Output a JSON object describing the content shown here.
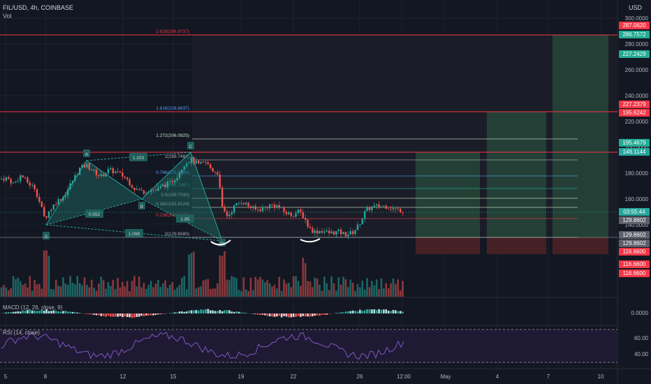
{
  "header": {
    "symbol": "FIL/USD, 4h, COINBASE",
    "vol_label": "Vol",
    "currency": "USD"
  },
  "indicators": {
    "macd_label": "MACD (12, 26, close, 9)",
    "rsi_label": "RSI (14, close)",
    "macd_axis": "0.0000",
    "rsi_axis": [
      "60.00",
      "40.00"
    ]
  },
  "price_axis": {
    "ticks": [
      "300.0000",
      "280.0000",
      "260.0000",
      "240.0000",
      "220.0000",
      "200.0000",
      "180.0000",
      "160.0000",
      "140.0000"
    ],
    "tags": [
      {
        "value": "287.0620",
        "color": "#f23645"
      },
      {
        "value": "286.7572",
        "color": "#22ab94"
      },
      {
        "value": "227.2429",
        "color": "#22ab94"
      },
      {
        "value": "227.2379",
        "color": "#f23645"
      },
      {
        "value": "195.6242",
        "color": "#f23645"
      },
      {
        "value": "195.4679",
        "color": "#22ab94"
      },
      {
        "value": "149.1144",
        "color": "#26a69a"
      },
      {
        "value": "03:55:44",
        "color": "#26a69a"
      },
      {
        "value": "129.8602",
        "color": "#5d606b"
      },
      {
        "value": "129.8602",
        "color": "#5d606b"
      },
      {
        "value": "129.8602",
        "color": "#5d606b"
      },
      {
        "value": "116.6600",
        "color": "#f23645"
      },
      {
        "value": "116.6600",
        "color": "#f23645"
      },
      {
        "value": "116.6600",
        "color": "#f23645"
      }
    ]
  },
  "time_axis": [
    "5",
    "8",
    "12",
    "15",
    "19",
    "22",
    "26",
    "12:00",
    "May",
    "4",
    "7",
    "10"
  ],
  "fib_levels": [
    {
      "label": "2.618(286.9737)",
      "color": "#f23645"
    },
    {
      "label": "1.618(226.8837)",
      "color": "#5b9cf6"
    },
    {
      "label": "1.272(206.0925)",
      "color": "#c8e6c9"
    },
    {
      "label": "1(189.7481)",
      "color": "#b2b5be"
    },
    {
      "label": "0.786(176.8888)",
      "color": "#5b9cf6"
    },
    {
      "label": "0.618(166.7867)",
      "color": "#26a69a"
    },
    {
      "label": "0.5(159.7030)",
      "color": "#c8e6c9"
    },
    {
      "label": "0.382(152.6124)",
      "color": "#c8e6c9"
    },
    {
      "label": "0.236(143.8417)",
      "color": "#f23645"
    },
    {
      "label": "0(129.6580)",
      "color": "#b2b5be"
    }
  ],
  "pattern": {
    "points": [
      "X",
      "A",
      "B",
      "C",
      "D"
    ],
    "ratios": [
      "1.103",
      "0.552",
      "1.098",
      "1.85"
    ]
  },
  "colors": {
    "bull": "#26a69a",
    "bear": "#ef5350",
    "accent": "#2962ff",
    "pattern_fill": "#1e5f5b"
  }
}
